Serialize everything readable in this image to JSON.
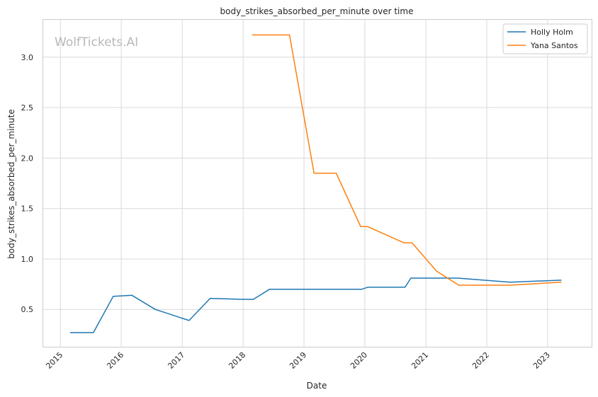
{
  "chart_data": {
    "type": "line",
    "title": "body_strikes_absorbed_per_minute over time",
    "xlabel": "Date",
    "ylabel": "body_strikes_absorbed_per_minute",
    "watermark": "WolfTickets.AI",
    "x_ticks": [
      "2015",
      "2016",
      "2017",
      "2018",
      "2019",
      "2020",
      "2021",
      "2022",
      "2023"
    ],
    "y_ticks": [
      "0.5",
      "1.0",
      "1.5",
      "2.0",
      "2.5",
      "3.0"
    ],
    "xlim": [
      "2014-09-20",
      "2023-09-22"
    ],
    "ylim": [
      0.13,
      3.37
    ],
    "grid": true,
    "legend_position": "top-right",
    "series": [
      {
        "name": "Holly Holm",
        "color": "#1f77b4",
        "points": [
          [
            "2015-02-28",
            0.27
          ],
          [
            "2015-07-18",
            0.27
          ],
          [
            "2015-11-14",
            0.63
          ],
          [
            "2016-03-05",
            0.64
          ],
          [
            "2016-07-23",
            0.5
          ],
          [
            "2017-02-11",
            0.39
          ],
          [
            "2017-06-17",
            0.61
          ],
          [
            "2017-12-30",
            0.6
          ],
          [
            "2018-03-03",
            0.6
          ],
          [
            "2018-06-09",
            0.7
          ],
          [
            "2019-03-02",
            0.7
          ],
          [
            "2019-07-13",
            0.7
          ],
          [
            "2019-12-14",
            0.7
          ],
          [
            "2020-01-18",
            0.72
          ],
          [
            "2020-08-29",
            0.72
          ],
          [
            "2020-10-03",
            0.81
          ],
          [
            "2021-07-10",
            0.81
          ],
          [
            "2022-05-21",
            0.77
          ],
          [
            "2023-03-25",
            0.79
          ]
        ]
      },
      {
        "name": "Yana Santos",
        "color": "#ff7f0e",
        "points": [
          [
            "2018-02-24",
            3.22
          ],
          [
            "2018-10-06",
            3.22
          ],
          [
            "2019-03-02",
            1.85
          ],
          [
            "2019-07-13",
            1.85
          ],
          [
            "2019-12-07",
            1.32
          ],
          [
            "2020-01-18",
            1.32
          ],
          [
            "2020-08-22",
            1.16
          ],
          [
            "2020-10-10",
            1.16
          ],
          [
            "2021-03-06",
            0.88
          ],
          [
            "2021-07-17",
            0.74
          ],
          [
            "2022-05-21",
            0.74
          ],
          [
            "2023-03-25",
            0.77
          ]
        ]
      }
    ]
  }
}
